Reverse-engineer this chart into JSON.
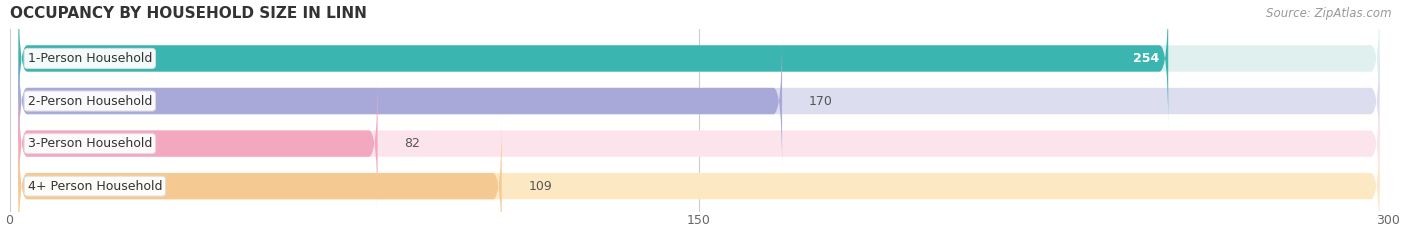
{
  "title": "OCCUPANCY BY HOUSEHOLD SIZE IN LINN",
  "source": "Source: ZipAtlas.com",
  "categories": [
    "1-Person Household",
    "2-Person Household",
    "3-Person Household",
    "4+ Person Household"
  ],
  "values": [
    254,
    170,
    82,
    109
  ],
  "bar_colors": [
    "#3ab5b0",
    "#a9a9d9",
    "#f4a8c0",
    "#f5c992"
  ],
  "bar_bg_colors": [
    "#e0f0ee",
    "#ddddf0",
    "#fce4ed",
    "#fde8c4"
  ],
  "value_label_colors": [
    "#ffffff",
    "#555555",
    "#555555",
    "#555555"
  ],
  "xlim": [
    0,
    300
  ],
  "xticks": [
    0,
    150,
    300
  ],
  "title_fontsize": 11,
  "tick_fontsize": 9,
  "label_fontsize": 9,
  "source_fontsize": 8.5,
  "bar_height": 0.62,
  "figsize": [
    14.06,
    2.33
  ],
  "dpi": 100
}
